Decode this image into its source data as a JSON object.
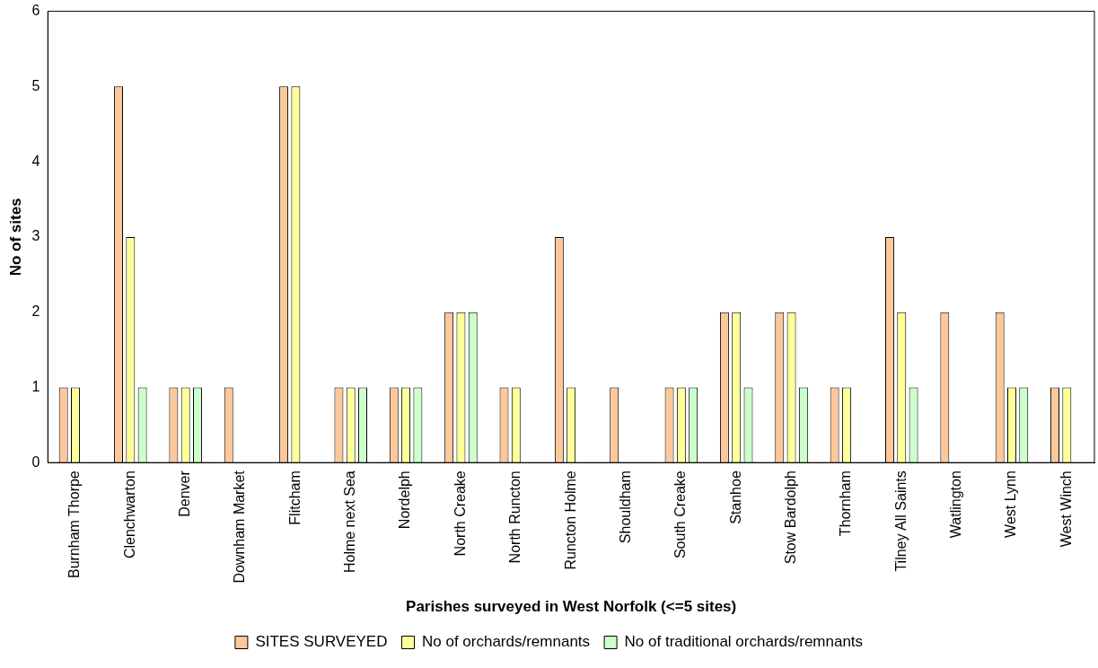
{
  "chart_data": {
    "type": "bar",
    "xlabel": "Parishes surveyed in West Norfolk (<=5 sites)",
    "ylabel": "No of sites",
    "categories": [
      "Burnham Thorpe",
      "Clenchwarton",
      "Denver",
      "Downham Market",
      "Flitcham",
      "Holme next Sea",
      "Nordelph",
      "North Creake",
      "North Runcton",
      "Runcton Holme",
      "Shouldham",
      "South Creake",
      "Stanhoe",
      "Stow Bardolph",
      "Thornham",
      "Tilney All Saints",
      "Watlington",
      "West Lynn",
      "West Winch"
    ],
    "series": [
      {
        "name": "SITES SURVEYED",
        "color": "#fcc89b",
        "values": [
          1,
          5,
          1,
          1,
          5,
          1,
          1,
          2,
          1,
          3,
          1,
          1,
          2,
          2,
          1,
          3,
          2,
          2,
          1
        ]
      },
      {
        "name": "No of orchards/remnants",
        "color": "#ffff99",
        "values": [
          1,
          3,
          1,
          0,
          5,
          1,
          1,
          2,
          1,
          1,
          0,
          1,
          2,
          2,
          1,
          2,
          0,
          1,
          1
        ]
      },
      {
        "name": "No of traditional orchards/remnants",
        "color": "#ccffcc",
        "values": [
          0,
          1,
          1,
          0,
          0,
          1,
          1,
          2,
          0,
          0,
          0,
          1,
          1,
          1,
          0,
          1,
          0,
          1,
          0
        ]
      }
    ],
    "ylim": [
      0,
      6
    ],
    "yticks": [
      0,
      1,
      2,
      3,
      4,
      5,
      6
    ],
    "grid": false,
    "legend": "bottom"
  }
}
